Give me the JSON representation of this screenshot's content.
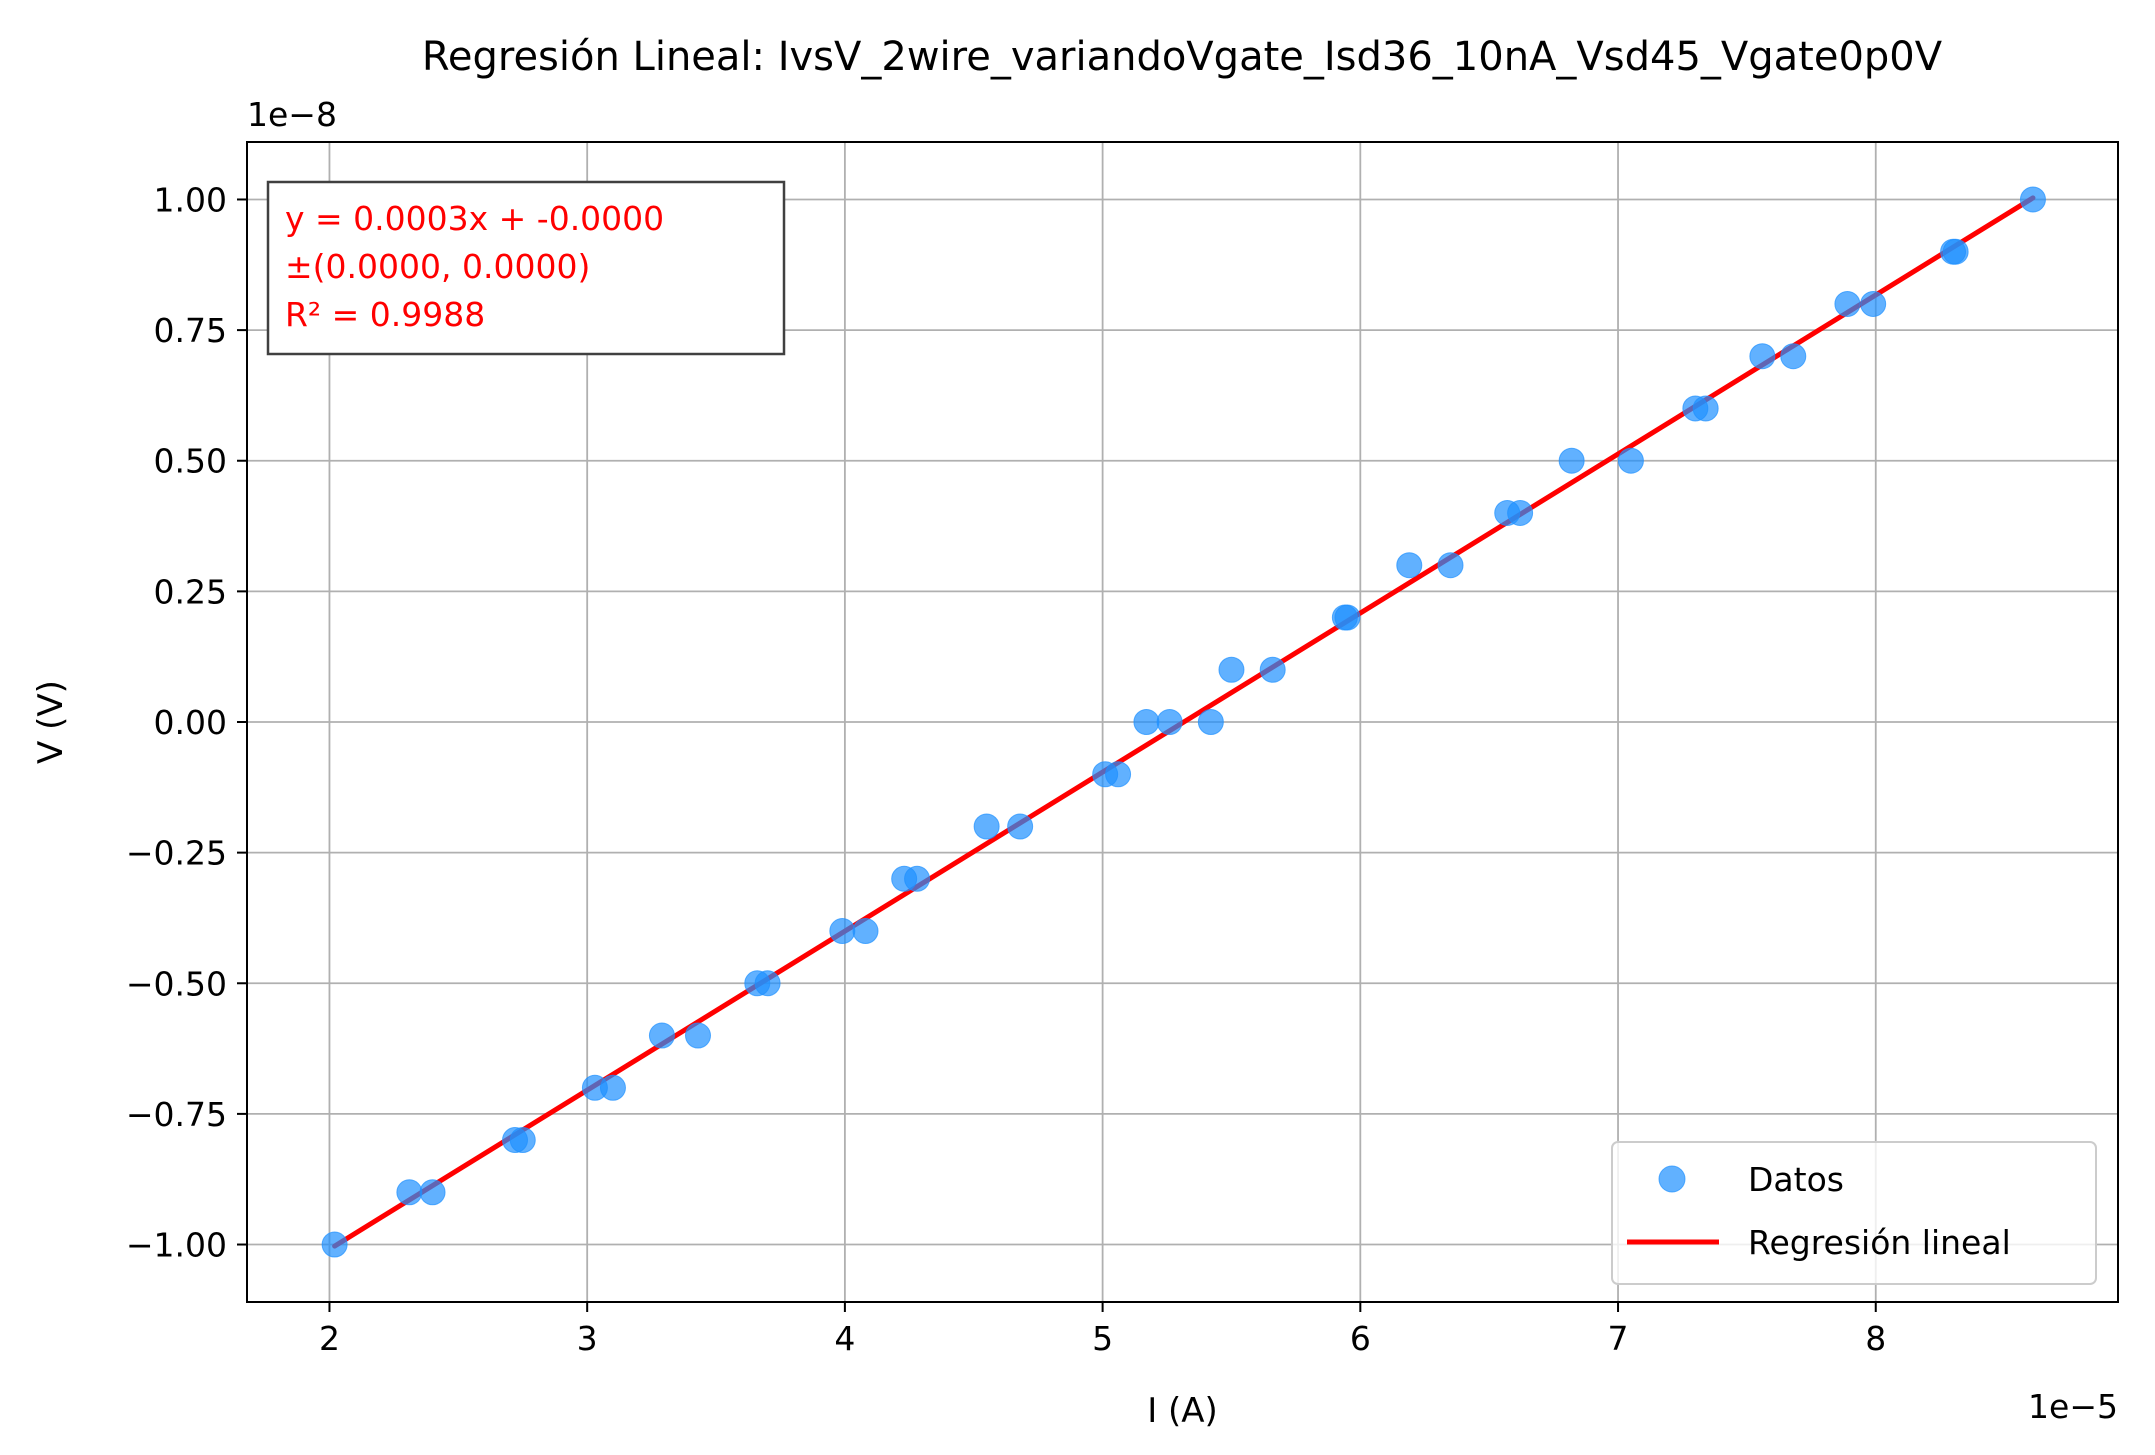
{
  "chart_data": {
    "type": "scatter",
    "title": "Regresión Lineal: IvsV_2wire_variandoVgate_Isd36_10nA_Vsd45_Vgate0p0V",
    "xlabel": "I (A)",
    "ylabel": "V (V)",
    "x_offset_label": "1e−5",
    "y_offset_label": "1e−8",
    "xlim": [
      1.68,
      8.94
    ],
    "ylim": [
      -1.11,
      1.11
    ],
    "x_ticks": [
      2,
      3,
      4,
      5,
      6,
      7,
      8
    ],
    "x_tick_labels": [
      "2",
      "3",
      "4",
      "5",
      "6",
      "7",
      "8"
    ],
    "y_ticks": [
      -1.0,
      -0.75,
      -0.5,
      -0.25,
      0.0,
      0.25,
      0.5,
      0.75,
      1.0
    ],
    "y_tick_labels": [
      "−1.00",
      "−0.75",
      "−0.50",
      "−0.25",
      "0.00",
      "0.25",
      "0.50",
      "0.75",
      "1.00"
    ],
    "grid": true,
    "legend_position": "bottom-right",
    "series": [
      {
        "name": "Datos",
        "kind": "scatter",
        "color": "#1e90ff",
        "x": [
          2.02,
          2.31,
          2.4,
          2.72,
          2.75,
          3.03,
          3.1,
          3.29,
          3.43,
          3.66,
          3.7,
          3.99,
          4.08,
          4.23,
          4.28,
          4.55,
          4.68,
          5.01,
          5.06,
          5.17,
          5.26,
          5.42,
          5.5,
          5.66,
          5.94,
          5.95,
          6.19,
          6.35,
          6.57,
          6.62,
          6.82,
          7.05,
          7.3,
          7.34,
          7.56,
          7.68,
          7.89,
          7.99,
          8.3,
          8.31,
          8.61
        ],
        "y": [
          -1.0,
          -0.9,
          -0.9,
          -0.8,
          -0.8,
          -0.7,
          -0.7,
          -0.6,
          -0.6,
          -0.5,
          -0.5,
          -0.4,
          -0.4,
          -0.3,
          -0.3,
          -0.2,
          -0.2,
          -0.1,
          -0.1,
          0.0,
          0.0,
          0.0,
          0.1,
          0.1,
          0.2,
          0.2,
          0.3,
          0.3,
          0.4,
          0.4,
          0.5,
          0.5,
          0.6,
          0.6,
          0.7,
          0.7,
          0.8,
          0.8,
          0.9,
          0.9,
          1.0
        ]
      },
      {
        "name": "Regresión lineal",
        "kind": "line",
        "color": "#ff0000",
        "x": [
          2.02,
          8.61
        ],
        "y": [
          -1.003,
          1.003
        ]
      }
    ],
    "annotation": {
      "lines": [
        "y = 0.0003x + -0.0000",
        "±(0.0000, 0.0000)",
        "R² = 0.9988"
      ],
      "color": "#ff0000"
    }
  }
}
